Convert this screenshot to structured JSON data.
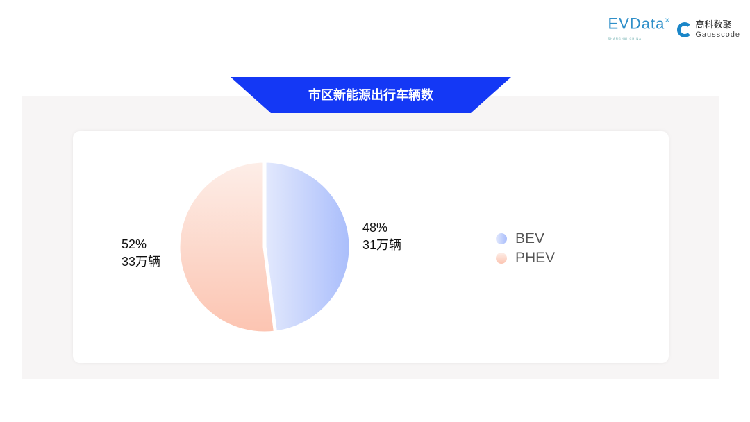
{
  "logos": {
    "evdata": "EVData",
    "evdata_sub": "SHANGHAI CHINA",
    "gauss_cn": "高科数聚",
    "gauss_en": "Gausscode"
  },
  "title": "市区新能源出行车辆数",
  "colors": {
    "banner": "#1438f5",
    "bev": "#a9bdfb",
    "phev": "#fcc4b1"
  },
  "chart_data": {
    "type": "pie",
    "title": "市区新能源出行车辆数",
    "slices": [
      {
        "name": "BEV",
        "percent": 48,
        "value_label": "31万辆",
        "pct_label": "48%"
      },
      {
        "name": "PHEV",
        "percent": 52,
        "value_label": "33万辆",
        "pct_label": "52%"
      }
    ],
    "legend_position": "right"
  }
}
